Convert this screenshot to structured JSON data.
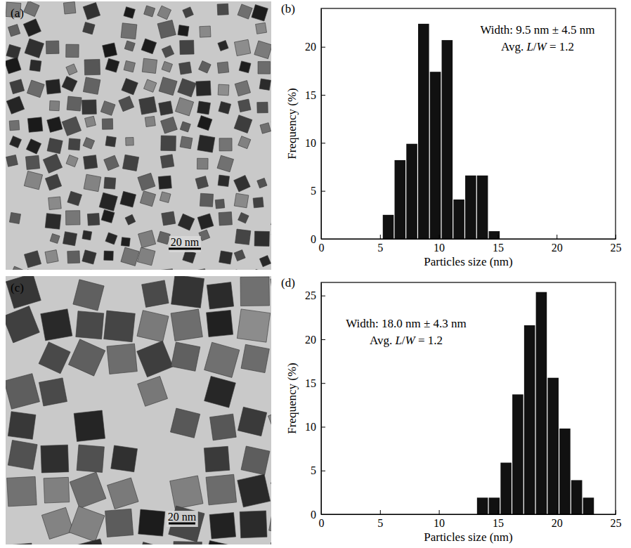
{
  "images": [
    {
      "panel": "(a)",
      "scale_bar": "20 nm"
    },
    {
      "panel": "(c)",
      "scale_bar": "20 nm"
    }
  ],
  "chart_data": [
    {
      "type": "histogram",
      "panel": "(b)",
      "x_label": "Particles size (nm)",
      "y_label": "Frequency (%)",
      "annotations": [
        "Width: 9.5 nm ± 4.5 nm",
        "Avg. L/W = 1.2"
      ],
      "bins": [
        5.2,
        6.2,
        7.2,
        8.2,
        9.2,
        10.2,
        11.2,
        12.2,
        13.2,
        14.2,
        15.2
      ],
      "values": [
        2.5,
        8.2,
        9.9,
        22.4,
        17.4,
        20.7,
        4.1,
        6.6,
        6.6,
        0.8
      ],
      "color": "#111111",
      "xlim": [
        0,
        25
      ],
      "xticks": [
        0,
        5,
        10,
        15,
        20,
        25
      ],
      "ylim": [
        0,
        24
      ],
      "yticks": [
        0,
        5,
        10,
        15,
        20
      ]
    },
    {
      "type": "histogram",
      "panel": "(d)",
      "x_label": "Particles size (nm)",
      "y_label": "Frequency (%)",
      "annotations": [
        "Width: 18.0 nm ± 4.3 nm",
        "Avg. L/W = 1.2"
      ],
      "bins": [
        13.2,
        14.2,
        15.2,
        16.2,
        17.2,
        18.2,
        19.2,
        20.2,
        21.2,
        22.2,
        23.2
      ],
      "values": [
        1.9,
        1.9,
        5.9,
        13.7,
        21.6,
        25.4,
        15.6,
        9.8,
        3.9,
        1.9
      ],
      "color": "#111111",
      "xlim": [
        0,
        25
      ],
      "xticks": [
        0,
        5,
        10,
        15,
        20,
        25
      ],
      "ylim": [
        0,
        26.5
      ],
      "yticks": [
        0,
        5,
        10,
        15,
        20,
        25
      ]
    }
  ]
}
